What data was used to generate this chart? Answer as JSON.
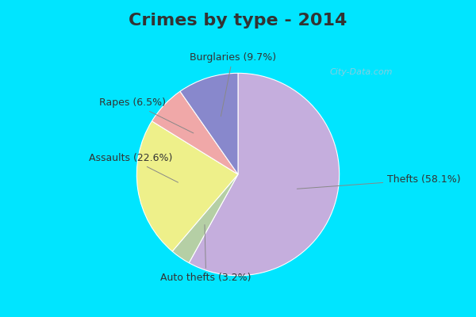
{
  "title": "Crimes by type - 2014",
  "slices": [
    {
      "label": "Thefts (58.1%)",
      "value": 58.1,
      "color": "#c5aedd"
    },
    {
      "label": "Auto thefts (3.2%)",
      "value": 3.2,
      "color": "#b5cfa5"
    },
    {
      "label": "Assaults (22.6%)",
      "value": 22.6,
      "color": "#eef08a"
    },
    {
      "label": "Rapes (6.5%)",
      "value": 6.5,
      "color": "#f0a8a8"
    },
    {
      "label": "Burglaries (9.7%)",
      "value": 9.7,
      "color": "#8888cc"
    }
  ],
  "startangle": 90,
  "title_fontsize": 16,
  "label_fontsize": 9,
  "title_color": "#333333",
  "title_bg": "#00e5ff",
  "chart_bg_top": "#e0f5ec",
  "chart_bg_bottom": "#d8f0e8",
  "border_color": "#00e5ff",
  "watermark": "City-Data.com"
}
